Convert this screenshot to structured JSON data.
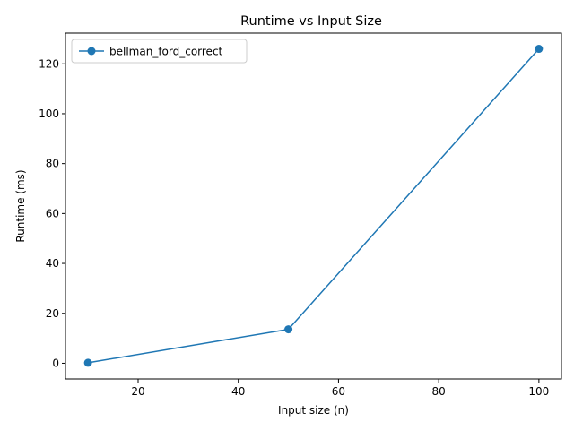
{
  "chart_data": {
    "type": "line",
    "title": "Runtime vs Input Size",
    "xlabel": "Input size (n)",
    "ylabel": "Runtime (ms)",
    "xlim": [
      5.5,
      104.5
    ],
    "ylim": [
      -6.3,
      132.3
    ],
    "x_ticks": [
      20,
      40,
      60,
      80,
      100
    ],
    "y_ticks": [
      0,
      20,
      40,
      60,
      80,
      100,
      120
    ],
    "grid": false,
    "legend_position": "upper left",
    "series": [
      {
        "name": "bellman_ford_correct",
        "color": "#1f77b4",
        "marker": "circle",
        "x": [
          10,
          50,
          100
        ],
        "y": [
          0.2,
          13.6,
          126.0
        ]
      }
    ]
  }
}
